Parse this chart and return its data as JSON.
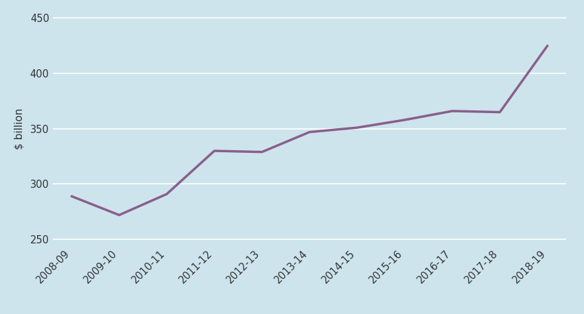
{
  "x_labels": [
    "2008-09",
    "2009-10",
    "2010-11",
    "2011-12",
    "2012-13",
    "2013-14",
    "2014-15",
    "2015-16",
    "2016-17",
    "2017-18",
    "2018-19"
  ],
  "y_values": [
    289,
    272,
    291,
    330,
    329,
    347,
    351,
    358,
    366,
    365,
    425
  ],
  "line_color": "#8B5E8B",
  "line_width": 2.5,
  "ylabel": "$ billion",
  "ylim": [
    245,
    455
  ],
  "yticks": [
    250,
    300,
    350,
    400,
    450
  ],
  "background_color": "#cde4ed",
  "grid_color": "#ffffff",
  "tick_label_color": "#333333",
  "axis_label_color": "#333333",
  "tick_fontsize": 10.5,
  "ylabel_fontsize": 11
}
